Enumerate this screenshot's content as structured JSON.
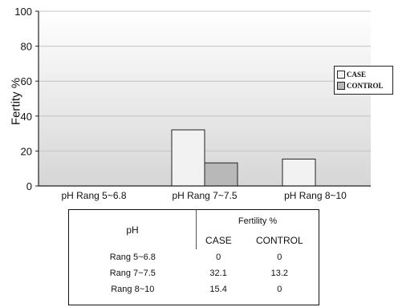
{
  "chart_data": {
    "type": "bar",
    "categories": [
      "pH Rang 5~6.8",
      "pH Rang 7~7.5",
      "pH Rang 8~10"
    ],
    "series": [
      {
        "name": "CASE",
        "values": [
          0,
          32.1,
          15.4
        ]
      },
      {
        "name": "CONTROL",
        "values": [
          0,
          13.2,
          0
        ]
      }
    ],
    "ylabel": "Fertity %",
    "ylim": [
      0,
      100
    ],
    "yticks": [
      0,
      20,
      40,
      60,
      80,
      100
    ],
    "grid": true,
    "legend_position": "right",
    "colors": {
      "CASE": "#f2f2f2",
      "CONTROL": "#b8b8b8",
      "plot_bg_top": "#ffffff",
      "plot_bg_bottom": "#d6d6d6"
    }
  },
  "table": {
    "header_ph": "pH",
    "header_group": "Fertility %",
    "col_case": "CASE",
    "col_control": "CONTROL",
    "rows": [
      {
        "label": "Rang 5~6.8",
        "case": "0",
        "control": "0"
      },
      {
        "label": "Rang 7~7.5",
        "case": "32.1",
        "control": "13.2"
      },
      {
        "label": "Rang 8~10",
        "case": "15.4",
        "control": "0"
      }
    ]
  }
}
